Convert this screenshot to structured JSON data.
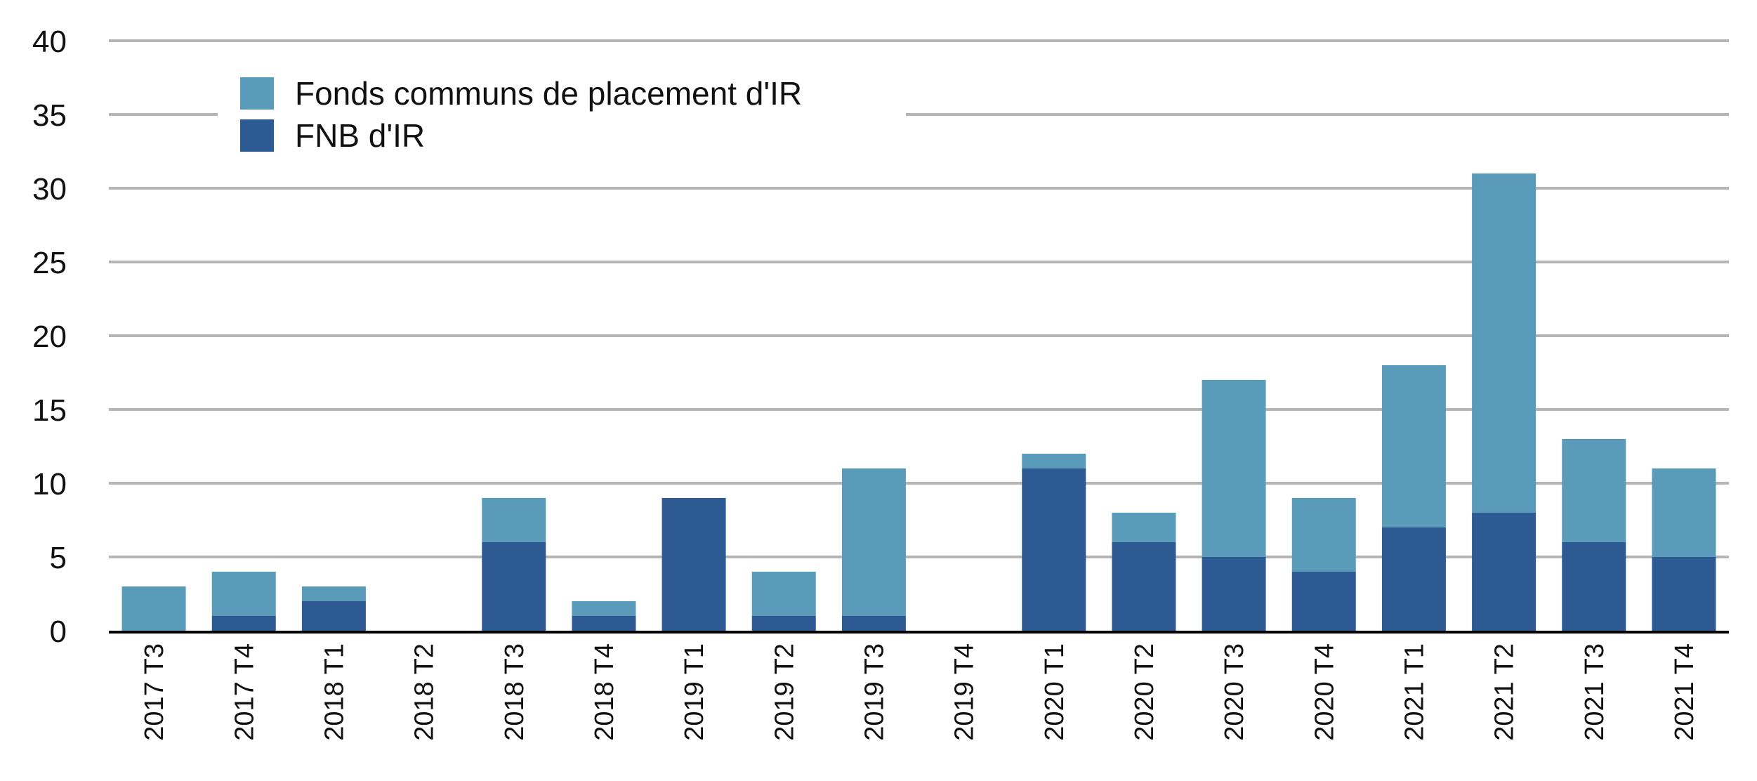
{
  "chart_data": {
    "type": "bar",
    "stacked": true,
    "title": "",
    "xlabel": "",
    "ylabel": "",
    "ylim": [
      0,
      40
    ],
    "yticks": [
      0,
      5,
      10,
      15,
      20,
      25,
      30,
      35,
      40
    ],
    "grid": true,
    "legend_position": "top-left",
    "categories": [
      "2017 T3",
      "2017 T4",
      "2018 T1",
      "2018 T2",
      "2018 T3",
      "2018 T4",
      "2019 T1",
      "2019 T2",
      "2019 T3",
      "2019 T4",
      "2020 T1",
      "2020 T2",
      "2020 T3",
      "2020 T4",
      "2021 T1",
      "2021 T2",
      "2021 T3",
      "2021 T4"
    ],
    "series": [
      {
        "name": "FNB d'IR",
        "color": "#2e5a93",
        "values": [
          0,
          1,
          2,
          0,
          6,
          1,
          9,
          1,
          1,
          0,
          11,
          6,
          5,
          4,
          7,
          8,
          6,
          5
        ]
      },
      {
        "name": "Fonds communs de placement d'IR",
        "color": "#5b9bba",
        "values": [
          3,
          3,
          1,
          0,
          3,
          1,
          0,
          3,
          10,
          0,
          1,
          2,
          12,
          5,
          11,
          23,
          7,
          6
        ]
      }
    ],
    "legend_order": [
      1,
      0
    ]
  }
}
